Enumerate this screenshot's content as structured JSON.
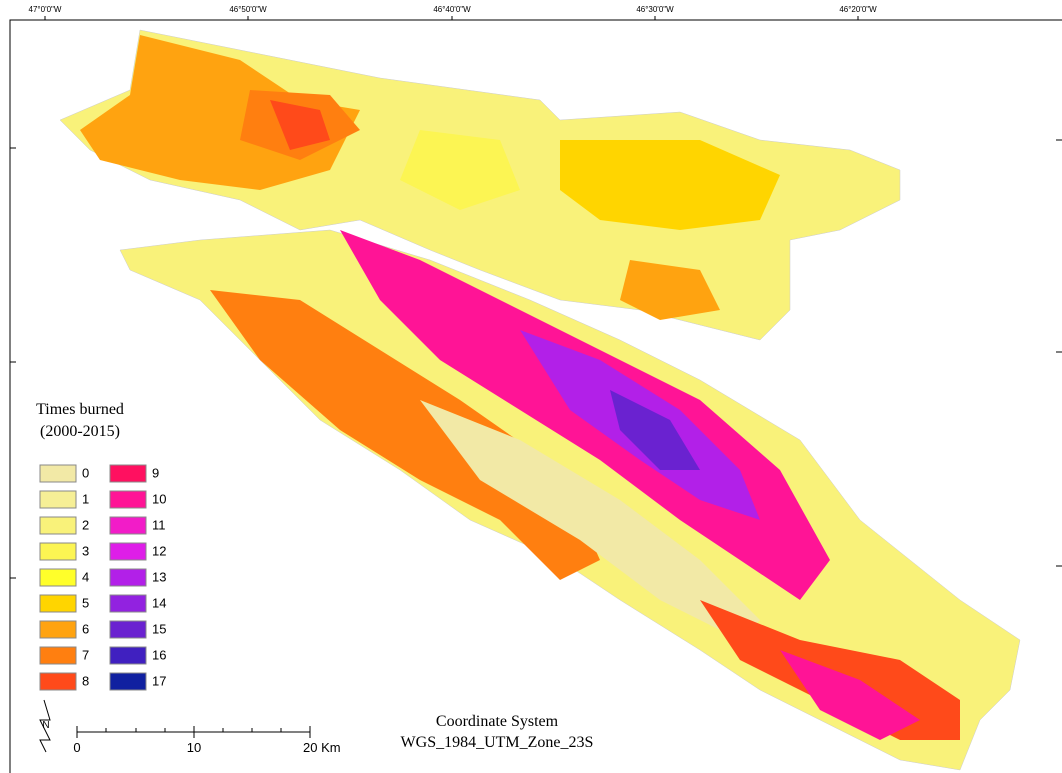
{
  "map": {
    "graticule_labels": [
      "47°0'0\"W",
      "46°50'0\"W",
      "46°40'0\"W",
      "46°30'0\"W",
      "46°20'0\"W"
    ],
    "legend": {
      "title": "Times burned",
      "subtitle": "(2000-2015)",
      "items": [
        {
          "label": "0",
          "color": "#f2e9a6"
        },
        {
          "label": "1",
          "color": "#f6ef96"
        },
        {
          "label": "2",
          "color": "#f9f27a"
        },
        {
          "label": "3",
          "color": "#fcf553"
        },
        {
          "label": "4",
          "color": "#ffff2a"
        },
        {
          "label": "5",
          "color": "#ffd500"
        },
        {
          "label": "6",
          "color": "#ffa310"
        },
        {
          "label": "7",
          "color": "#ff7f10"
        },
        {
          "label": "8",
          "color": "#ff4a1a"
        },
        {
          "label": "9",
          "color": "#ff1060"
        },
        {
          "label": "10",
          "color": "#ff1496"
        },
        {
          "label": "11",
          "color": "#f21cc8"
        },
        {
          "label": "12",
          "color": "#de1ee8"
        },
        {
          "label": "13",
          "color": "#b220e8"
        },
        {
          "label": "14",
          "color": "#9222e0"
        },
        {
          "label": "15",
          "color": "#6a22d0"
        },
        {
          "label": "16",
          "color": "#4020c0"
        },
        {
          "label": "17",
          "color": "#1020a0"
        }
      ]
    },
    "scale_bar": {
      "labels": [
        "0",
        "10",
        "20 Km"
      ]
    },
    "north_arrow": "N",
    "coordinate_system": [
      "Coordinate System",
      "WGS_1984_UTM_Zone_23S"
    ]
  }
}
